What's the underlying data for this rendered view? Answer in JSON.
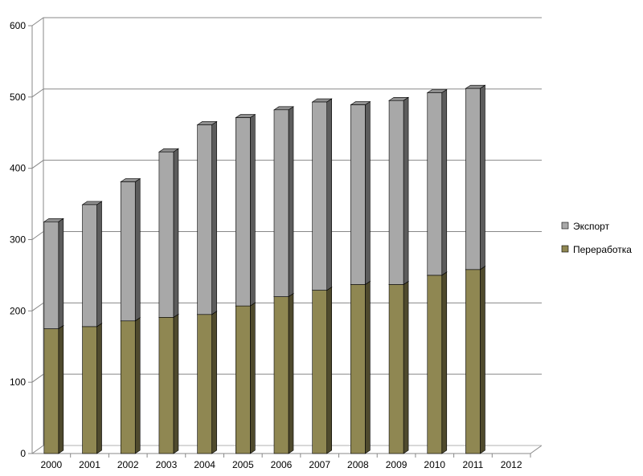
{
  "chart_data": {
    "type": "bar",
    "stacked": true,
    "three_d": true,
    "categories": [
      "2000",
      "2001",
      "2002",
      "2003",
      "2004",
      "2005",
      "2006",
      "2007",
      "2008",
      "2009",
      "2010",
      "2011",
      "2012"
    ],
    "series": [
      {
        "name": "Переработка",
        "color": "#8f8752",
        "values": [
          175,
          178,
          186,
          191,
          195,
          207,
          220,
          229,
          237,
          237,
          250,
          258,
          null
        ]
      },
      {
        "name": "Экспорт",
        "color": "#a8a8a8",
        "values": [
          150,
          171,
          195,
          232,
          266,
          264,
          262,
          264,
          252,
          258,
          256,
          254,
          null
        ]
      }
    ],
    "yticks": [
      "0",
      "100",
      "200",
      "300",
      "400",
      "500",
      "600"
    ],
    "ylim": [
      0,
      600
    ],
    "grid": true,
    "legend": "right",
    "legend_order": [
      "Экспорт",
      "Переработка"
    ]
  }
}
